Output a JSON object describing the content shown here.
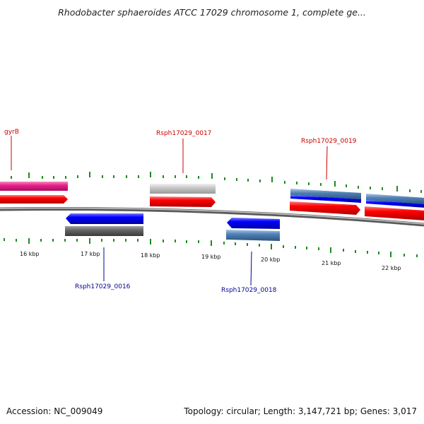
{
  "title": "Rhodobacter sphaeroides ATCC 17029 chromosome 1, complete ge...",
  "footer": {
    "accession": "Accession: NC_009049",
    "summary": "Topology: circular; Length: 3,147,721 bp; Genes: 3,017"
  },
  "colors": {
    "forward_label": "#cc0000",
    "reverse_label": "#000099",
    "tick": "#1e8a1e",
    "backbone": "#888888",
    "cds_forward": "#ff0000",
    "cds_reverse": "#0000ff",
    "gene_magenta": "#e8208a",
    "gene_gray_light": "#c8c8c8",
    "gene_gray_dark": "#666666",
    "gene_steel": "#4f81b4"
  },
  "scale_labels": [
    "16 kbp",
    "17 kbp",
    "18 kbp",
    "19 kbp",
    "20 kbp",
    "21 kbp",
    "22 kbp"
  ],
  "gene_labels": {
    "gyrB": "gyrB",
    "g17": "Rsph17029_0017",
    "g19": "Rsph17029_0019",
    "g16": "Rsph17029_0016",
    "g18": "Rsph17029_0018"
  }
}
